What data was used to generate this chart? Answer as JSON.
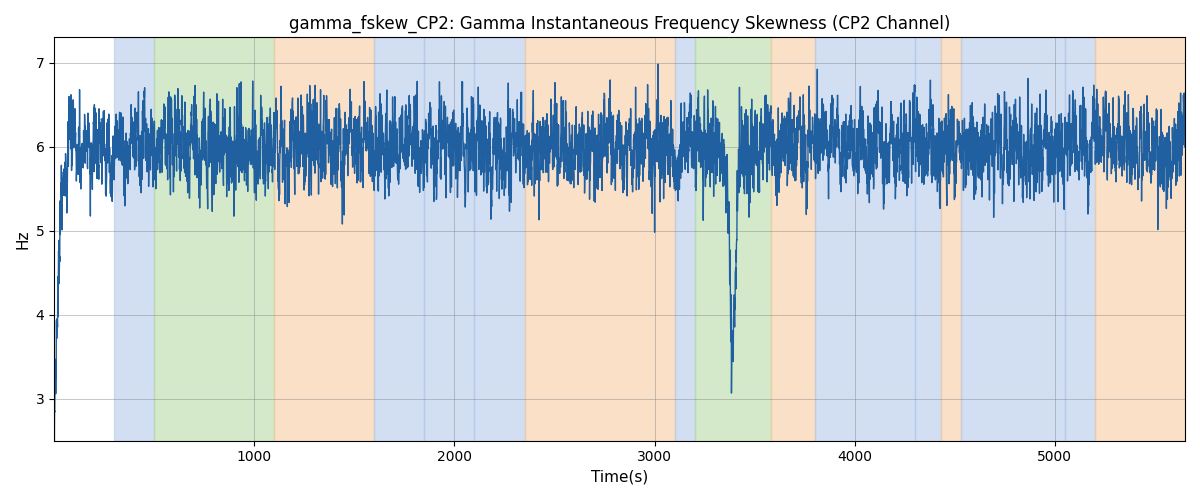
{
  "title": "gamma_fskew_CP2: Gamma Instantaneous Frequency Skewness (CP2 Channel)",
  "xlabel": "Time(s)",
  "ylabel": "Hz",
  "xlim": [
    0,
    5650
  ],
  "ylim": [
    2.5,
    7.3
  ],
  "line_color": "#2060a0",
  "line_width": 1.0,
  "bg_bands": [
    {
      "xmin": 300,
      "xmax": 500,
      "color": "#aec6e8",
      "alpha": 0.55
    },
    {
      "xmin": 500,
      "xmax": 1100,
      "color": "#b2d8a0",
      "alpha": 0.55
    },
    {
      "xmin": 1100,
      "xmax": 1600,
      "color": "#f5c89a",
      "alpha": 0.55
    },
    {
      "xmin": 1600,
      "xmax": 1850,
      "color": "#aec6e8",
      "alpha": 0.55
    },
    {
      "xmin": 1850,
      "xmax": 2100,
      "color": "#aec6e8",
      "alpha": 0.55
    },
    {
      "xmin": 2100,
      "xmax": 2350,
      "color": "#aec6e8",
      "alpha": 0.55
    },
    {
      "xmin": 2350,
      "xmax": 3100,
      "color": "#f5c89a",
      "alpha": 0.55
    },
    {
      "xmin": 3100,
      "xmax": 3200,
      "color": "#aec6e8",
      "alpha": 0.55
    },
    {
      "xmin": 3200,
      "xmax": 3580,
      "color": "#b2d8a0",
      "alpha": 0.55
    },
    {
      "xmin": 3580,
      "xmax": 3800,
      "color": "#f5c89a",
      "alpha": 0.55
    },
    {
      "xmin": 3800,
      "xmax": 4300,
      "color": "#aec6e8",
      "alpha": 0.55
    },
    {
      "xmin": 4300,
      "xmax": 4430,
      "color": "#aec6e8",
      "alpha": 0.55
    },
    {
      "xmin": 4430,
      "xmax": 4530,
      "color": "#f5c89a",
      "alpha": 0.55
    },
    {
      "xmin": 4530,
      "xmax": 5050,
      "color": "#aec6e8",
      "alpha": 0.55
    },
    {
      "xmin": 5050,
      "xmax": 5200,
      "color": "#aec6e8",
      "alpha": 0.55
    },
    {
      "xmin": 5200,
      "xmax": 5650,
      "color": "#f5c89a",
      "alpha": 0.55
    }
  ],
  "yticks": [
    3,
    4,
    5,
    6,
    7
  ],
  "xticks": [
    1000,
    2000,
    3000,
    4000,
    5000
  ],
  "seed": 17,
  "n_points": 5650
}
